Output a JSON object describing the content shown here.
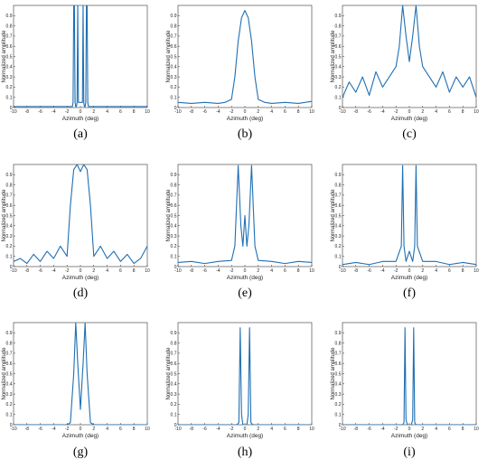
{
  "figure": {
    "labels": [
      "(a)",
      "(b)",
      "(c)",
      "(d)",
      "(e)",
      "(f)",
      "(g)",
      "(h)",
      "(i)"
    ]
  },
  "colors": {
    "line": "#1f6fb3",
    "line_light": "#4a9bd4",
    "axis": "#333333"
  },
  "chart_data": [
    {
      "panel": "a",
      "type": "line",
      "xlabel": "Azimuth (deg)",
      "ylabel": "Normalized amplitude",
      "xlim": [
        -10,
        10
      ],
      "ylim": [
        0,
        1
      ],
      "xticks": [
        -10,
        -8,
        -6,
        -4,
        -2,
        0,
        2,
        4,
        6,
        8,
        10
      ],
      "yticks": [
        0,
        0.1,
        0.2,
        0.3,
        0.4,
        0.5,
        0.6,
        0.7,
        0.8,
        0.9
      ],
      "series": [
        {
          "x": [
            -10,
            -1.2,
            -1.1,
            -1.0,
            -0.9,
            -0.8,
            -0.7,
            -0.6,
            -0.5,
            -0.4,
            -0.3,
            0.3,
            0.4,
            0.5,
            0.6,
            0.7,
            0.8,
            0.9,
            1.0,
            1.1,
            1.2,
            10
          ],
          "y": [
            0.01,
            0.01,
            0.05,
            1.0,
            1.0,
            0.05,
            0.01,
            0.01,
            0.05,
            1.0,
            0.05,
            0.05,
            1.0,
            0.05,
            0.01,
            0.01,
            0.05,
            1.0,
            1.0,
            0.05,
            0.01,
            0.01
          ]
        }
      ]
    },
    {
      "panel": "b",
      "type": "line",
      "xlabel": "Azimuth (deg)",
      "ylabel": "Normalized amplitude",
      "xlim": [
        -10,
        10
      ],
      "ylim": [
        0,
        1
      ],
      "xticks": [
        -10,
        -8,
        -6,
        -4,
        -2,
        0,
        2,
        4,
        6,
        8,
        10
      ],
      "yticks": [
        0,
        0.1,
        0.2,
        0.3,
        0.4,
        0.5,
        0.6,
        0.7,
        0.8,
        0.9
      ],
      "series": [
        {
          "x": [
            -10,
            -8,
            -6,
            -4,
            -3,
            -2,
            -1.5,
            -1,
            -0.5,
            0,
            0.5,
            1,
            1.5,
            2,
            3,
            4,
            6,
            8,
            10
          ],
          "y": [
            0.05,
            0.04,
            0.05,
            0.04,
            0.05,
            0.08,
            0.3,
            0.65,
            0.88,
            0.95,
            0.88,
            0.65,
            0.3,
            0.08,
            0.05,
            0.04,
            0.05,
            0.04,
            0.06
          ]
        }
      ]
    },
    {
      "panel": "c",
      "type": "line",
      "xlabel": "Azimuth (deg)",
      "ylabel": "Normalized amplitude",
      "xlim": [
        -10,
        10
      ],
      "ylim": [
        0,
        1
      ],
      "xticks": [
        -10,
        -8,
        -6,
        -4,
        -2,
        0,
        2,
        4,
        6,
        8,
        10
      ],
      "yticks": [
        0,
        0.1,
        0.2,
        0.3,
        0.4,
        0.5,
        0.6,
        0.7,
        0.8,
        0.9
      ],
      "series": [
        {
          "x": [
            -10,
            -9,
            -8,
            -7,
            -6,
            -5,
            -4,
            -3,
            -2,
            -1.5,
            -1,
            -0.5,
            0,
            0.5,
            1,
            1.5,
            2,
            3,
            4,
            5,
            6,
            7,
            8,
            9,
            10
          ],
          "y": [
            0.1,
            0.25,
            0.15,
            0.3,
            0.12,
            0.35,
            0.2,
            0.3,
            0.4,
            0.6,
            1.0,
            0.7,
            0.45,
            0.7,
            1.0,
            0.6,
            0.4,
            0.3,
            0.2,
            0.35,
            0.15,
            0.3,
            0.2,
            0.3,
            0.1
          ]
        }
      ]
    },
    {
      "panel": "d",
      "type": "line",
      "xlabel": "Azimuth (deg)",
      "ylabel": "Normalized amplitude",
      "xlim": [
        -10,
        10
      ],
      "ylim": [
        0,
        1
      ],
      "xticks": [
        -10,
        -8,
        -6,
        -4,
        -2,
        0,
        2,
        4,
        6,
        8,
        10
      ],
      "yticks": [
        0,
        0.1,
        0.2,
        0.3,
        0.4,
        0.5,
        0.6,
        0.7,
        0.8,
        0.9
      ],
      "series": [
        {
          "x": [
            -10,
            -9,
            -8,
            -7,
            -6,
            -5,
            -4,
            -3,
            -2,
            -1.5,
            -1,
            -0.5,
            0,
            0.5,
            1,
            1.5,
            2,
            3,
            4,
            5,
            6,
            7,
            8,
            9,
            10
          ],
          "y": [
            0.05,
            0.08,
            0.03,
            0.12,
            0.05,
            0.15,
            0.08,
            0.2,
            0.1,
            0.6,
            0.95,
            1.0,
            0.93,
            1.0,
            0.95,
            0.6,
            0.1,
            0.2,
            0.08,
            0.15,
            0.05,
            0.12,
            0.03,
            0.08,
            0.2
          ]
        }
      ]
    },
    {
      "panel": "e",
      "type": "line",
      "xlabel": "Azimuth (deg)",
      "ylabel": "Normalized amplitude",
      "xlim": [
        -10,
        10
      ],
      "ylim": [
        0,
        1
      ],
      "xticks": [
        -10,
        -8,
        -6,
        -4,
        -2,
        0,
        2,
        4,
        6,
        8,
        10
      ],
      "yticks": [
        0,
        0.1,
        0.2,
        0.3,
        0.4,
        0.5,
        0.6,
        0.7,
        0.8,
        0.9
      ],
      "series": [
        {
          "x": [
            -10,
            -8,
            -6,
            -4,
            -2,
            -1.5,
            -1,
            -0.6,
            -0.3,
            0,
            0.3,
            0.6,
            1,
            1.5,
            2,
            4,
            6,
            8,
            10
          ],
          "y": [
            0.04,
            0.05,
            0.03,
            0.05,
            0.06,
            0.2,
            0.99,
            0.4,
            0.2,
            0.5,
            0.2,
            0.4,
            0.99,
            0.2,
            0.06,
            0.05,
            0.03,
            0.05,
            0.04
          ]
        }
      ]
    },
    {
      "panel": "f",
      "type": "line",
      "xlabel": "Azimuth (deg)",
      "ylabel": "Normalized amplitude",
      "xlim": [
        -10,
        10
      ],
      "ylim": [
        0,
        1
      ],
      "xticks": [
        -10,
        -8,
        -6,
        -4,
        -2,
        0,
        2,
        4,
        6,
        8,
        10
      ],
      "yticks": [
        0,
        0.1,
        0.2,
        0.3,
        0.4,
        0.5,
        0.6,
        0.7,
        0.8,
        0.9
      ],
      "series": [
        {
          "x": [
            -10,
            -8,
            -6,
            -4,
            -2,
            -1.2,
            -1,
            -0.8,
            -0.5,
            0,
            0.5,
            0.8,
            1,
            1.2,
            2,
            4,
            6,
            8,
            10
          ],
          "y": [
            0.02,
            0.04,
            0.02,
            0.05,
            0.05,
            0.2,
            0.99,
            0.2,
            0.05,
            0.15,
            0.05,
            0.2,
            0.99,
            0.2,
            0.05,
            0.05,
            0.02,
            0.04,
            0.02
          ]
        }
      ]
    },
    {
      "panel": "g",
      "type": "line",
      "xlabel": "Azimuth (deg)",
      "ylabel": "Normalized amplitude",
      "xlim": [
        -10,
        10
      ],
      "ylim": [
        0,
        1
      ],
      "xticks": [
        -10,
        -8,
        -6,
        -4,
        -2,
        0,
        2,
        4,
        6,
        8,
        10
      ],
      "yticks": [
        0,
        0.1,
        0.2,
        0.3,
        0.4,
        0.5,
        0.6,
        0.7,
        0.8,
        0.9
      ],
      "series": [
        {
          "x": [
            -10,
            -2,
            -1.5,
            -1,
            -0.7,
            -0.4,
            0,
            0.4,
            0.7,
            1,
            1.5,
            2,
            10
          ],
          "y": [
            0.0,
            0.0,
            0.02,
            0.5,
            1.0,
            0.6,
            0.15,
            0.6,
            1.0,
            0.5,
            0.02,
            0.0,
            0.0
          ]
        }
      ]
    },
    {
      "panel": "h",
      "type": "line",
      "xlabel": "Azimuth (deg)",
      "ylabel": "Normalized amplitude",
      "xlim": [
        -10,
        10
      ],
      "ylim": [
        0,
        1
      ],
      "xticks": [
        -10,
        -8,
        -6,
        -4,
        -2,
        0,
        2,
        4,
        6,
        8,
        10
      ],
      "yticks": [
        0,
        0.1,
        0.2,
        0.3,
        0.4,
        0.5,
        0.6,
        0.7,
        0.8,
        0.9
      ],
      "series": [
        {
          "x": [
            -10,
            -1.2,
            -0.9,
            -0.7,
            -0.5,
            -0.3,
            0,
            0.3,
            0.5,
            0.7,
            0.9,
            1.2,
            10
          ],
          "y": [
            0.0,
            0.0,
            0.02,
            0.95,
            0.1,
            0.0,
            0.0,
            0.0,
            0.1,
            0.95,
            0.02,
            0.0,
            0.0
          ]
        }
      ]
    },
    {
      "panel": "i",
      "type": "line",
      "xlabel": "Azimuth (deg)",
      "ylabel": "Normalized amplitude",
      "xlim": [
        -10,
        10
      ],
      "ylim": [
        0,
        1
      ],
      "xticks": [
        -10,
        -8,
        -6,
        -4,
        -2,
        0,
        2,
        4,
        6,
        8,
        10
      ],
      "yticks": [
        0,
        0.1,
        0.2,
        0.3,
        0.4,
        0.5,
        0.6,
        0.7,
        0.8,
        0.9
      ],
      "series": [
        {
          "x": [
            -10,
            -1.0,
            -0.8,
            -0.65,
            -0.5,
            -0.3,
            0,
            0.3,
            0.5,
            0.65,
            0.8,
            1.0,
            10
          ],
          "y": [
            0.0,
            0.0,
            0.02,
            0.95,
            0.05,
            0.0,
            0.0,
            0.0,
            0.05,
            0.95,
            0.02,
            0.0,
            0.0
          ]
        }
      ]
    }
  ]
}
